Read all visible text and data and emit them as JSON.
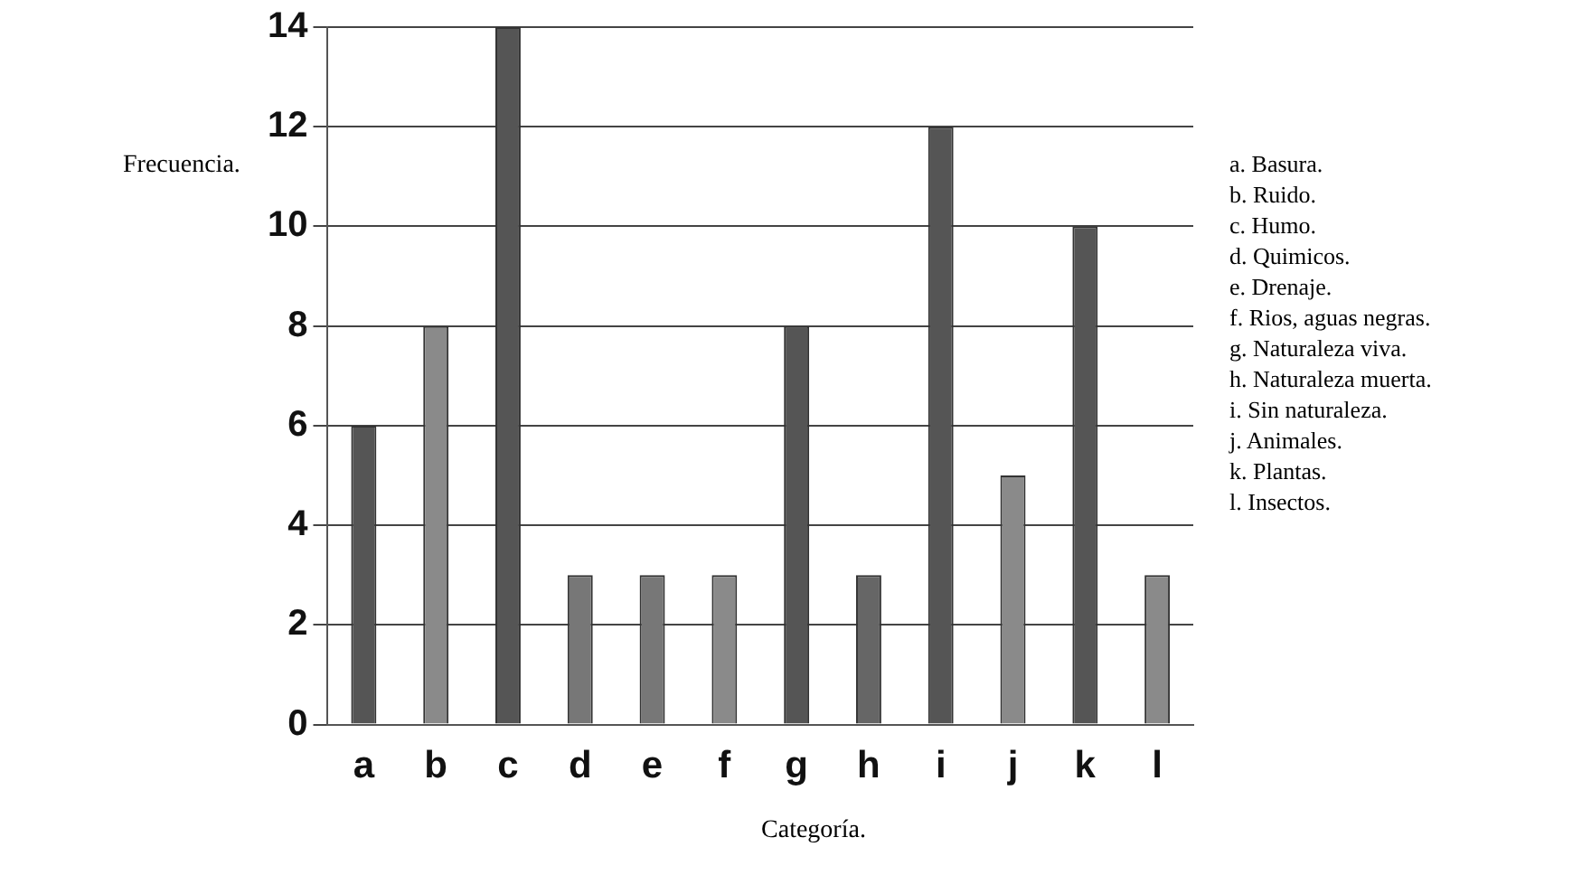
{
  "chart_data": {
    "type": "bar",
    "xlabel": "Categoría.",
    "ylabel": "Frecuencia.",
    "categories": [
      "a",
      "b",
      "c",
      "d",
      "e",
      "f",
      "g",
      "h",
      "i",
      "j",
      "k",
      "l"
    ],
    "values": [
      6,
      8,
      14,
      3,
      3,
      3,
      8,
      3,
      12,
      5,
      10,
      3
    ],
    "colors": [
      "#555555",
      "#8a8a8a",
      "#555555",
      "#777777",
      "#777777",
      "#8a8a8a",
      "#555555",
      "#666666",
      "#555555",
      "#8a8a8a",
      "#555555",
      "#8a8a8a"
    ],
    "ylim": [
      0,
      14
    ],
    "yticks": [
      0,
      2,
      4,
      6,
      8,
      10,
      12,
      14
    ],
    "grid": "y",
    "legend": false,
    "annotations": [
      "a. Basura.",
      "b. Ruido.",
      "c. Humo.",
      "d. Quimicos.",
      "e. Drenaje.",
      "f. Rios, aguas negras.",
      "g. Naturaleza viva.",
      "h. Naturaleza muerta.",
      "i. Sin naturaleza.",
      "j. Animales.",
      "k. Plantas.",
      "l. Insectos."
    ]
  }
}
